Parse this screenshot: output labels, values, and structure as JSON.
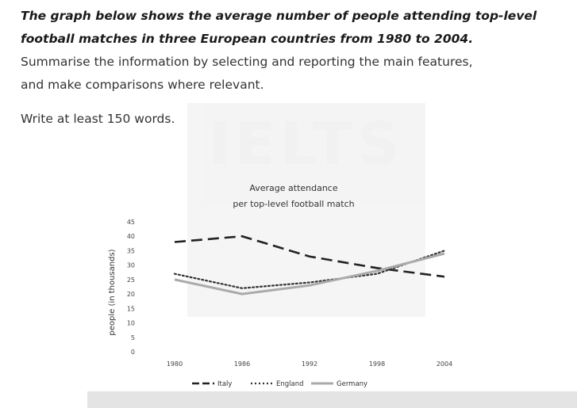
{
  "task": {
    "title_line1": "The graph below shows the average number of people attending top-level",
    "title_line2": "football matches in three European countries from 1980 to 2004.",
    "instruction_line1": "Summarise the information by selecting and reporting the main features,",
    "instruction_line2": "and make comparisons where relevant.",
    "word_requirement": "Write at least 150 words."
  },
  "watermark": {
    "text": "IELTS"
  },
  "chart_data": {
    "type": "line",
    "title_line1": "Average attendance",
    "title_line2": "per top-level football match",
    "xlabel": "",
    "ylabel": "people (in thousands)",
    "x": [
      1980,
      1986,
      1992,
      1998,
      2004
    ],
    "x_ticks": [
      "1980",
      "1986",
      "1992",
      "1998",
      "2004"
    ],
    "y_ticks": [
      "0",
      "5",
      "10",
      "15",
      "20",
      "25",
      "30",
      "35",
      "40",
      "45"
    ],
    "ylim": [
      0,
      45
    ],
    "grid": false,
    "legend_position": "bottom",
    "series": [
      {
        "name": "Italy",
        "values": [
          38,
          40,
          33,
          29,
          26
        ],
        "style": "dashed-long",
        "color": "#222222"
      },
      {
        "name": "England",
        "values": [
          27,
          22,
          24,
          27,
          35
        ],
        "style": "dotted",
        "color": "#333333"
      },
      {
        "name": "Germany",
        "values": [
          25,
          20,
          23,
          28,
          34
        ],
        "style": "solid",
        "color": "#aaaaaa"
      }
    ]
  }
}
